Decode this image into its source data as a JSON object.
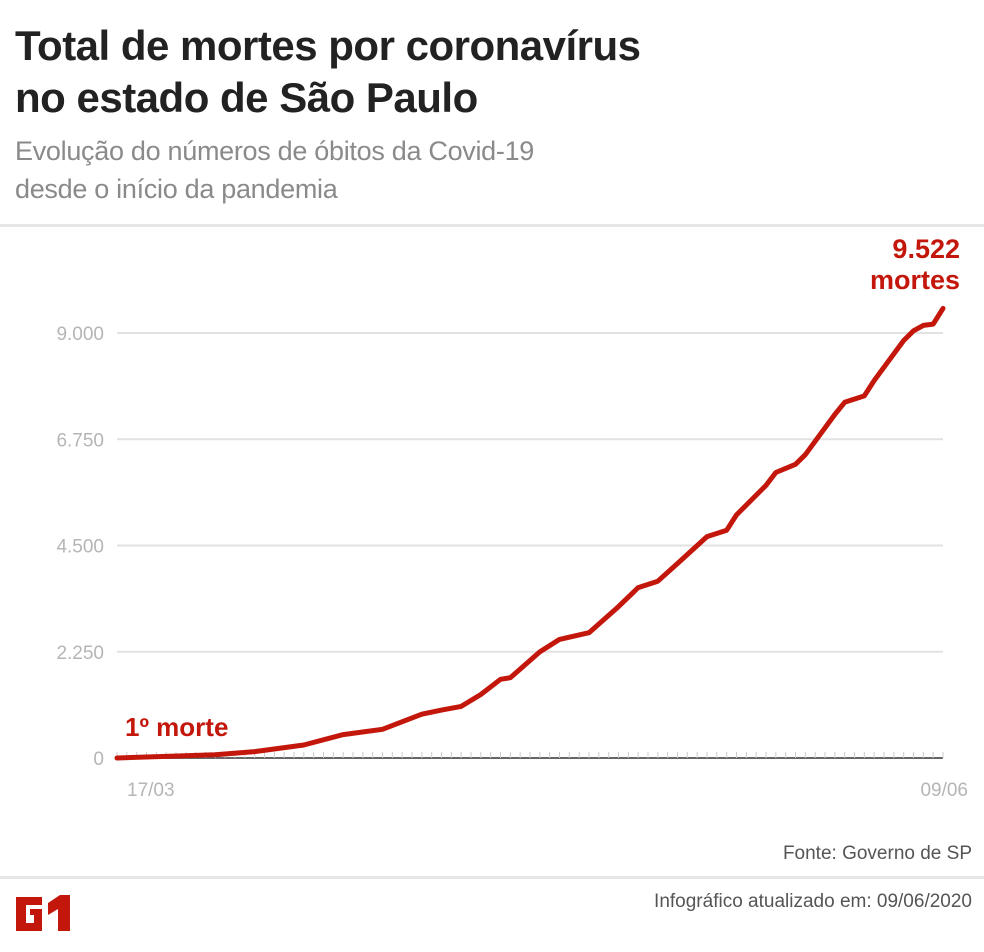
{
  "header": {
    "title_line1": "Total de mortes por coronavírus",
    "title_line2": "no estado de São Paulo",
    "subtitle_line1": "Evolução do números de óbitos da Covid-19",
    "subtitle_line2": "desde o início da pandemia"
  },
  "footer": {
    "source": "Fonte: Governo de SP",
    "updated": "Infográfico atualizado em: 09/06/2020",
    "logo": "G1"
  },
  "colors": {
    "line": "#c4170c",
    "grid": "#e2e2e2",
    "tick_label": "#b5b5b5",
    "axis": "#666666"
  },
  "chart_data": {
    "type": "line",
    "title": "Total de mortes por coronavírus no estado de São Paulo",
    "xlabel": "",
    "ylabel": "",
    "x_tick_labels": [
      "17/03",
      "09/06"
    ],
    "y_ticks": [
      0,
      2250,
      4500,
      6750,
      9000
    ],
    "y_tick_labels": [
      "0",
      "2.250",
      "4.500",
      "6.750",
      "9.000"
    ],
    "ylim": [
      0,
      9700
    ],
    "grid": true,
    "annotations": {
      "start": "1º morte",
      "end_value": "9.522",
      "end_unit": "mortes"
    },
    "x": [
      "17/03",
      "27/03",
      "31/03",
      "05/04",
      "09/04",
      "13/04",
      "17/04",
      "19/04",
      "21/04",
      "23/04",
      "25/04",
      "26/04",
      "29/04",
      "01/05",
      "04/05",
      "07/05",
      "09/05",
      "11/05",
      "13/05",
      "16/05",
      "18/05",
      "19/05",
      "22/05",
      "23/05",
      "25/05",
      "26/05",
      "29/05",
      "30/05",
      "01/06",
      "02/06",
      "05/06",
      "06/06",
      "07/06",
      "08/06",
      "09/06"
    ],
    "values": [
      1,
      68,
      136,
      275,
      496,
      608,
      928,
      1015,
      1093,
      1345,
      1667,
      1700,
      2247,
      2511,
      2654,
      3206,
      3608,
      3743,
      4118,
      4688,
      4823,
      5147,
      5773,
      6045,
      6220,
      6423,
      7275,
      7532,
      7667,
      7994,
      8842,
      9046,
      9162,
      9188,
      9522
    ]
  }
}
